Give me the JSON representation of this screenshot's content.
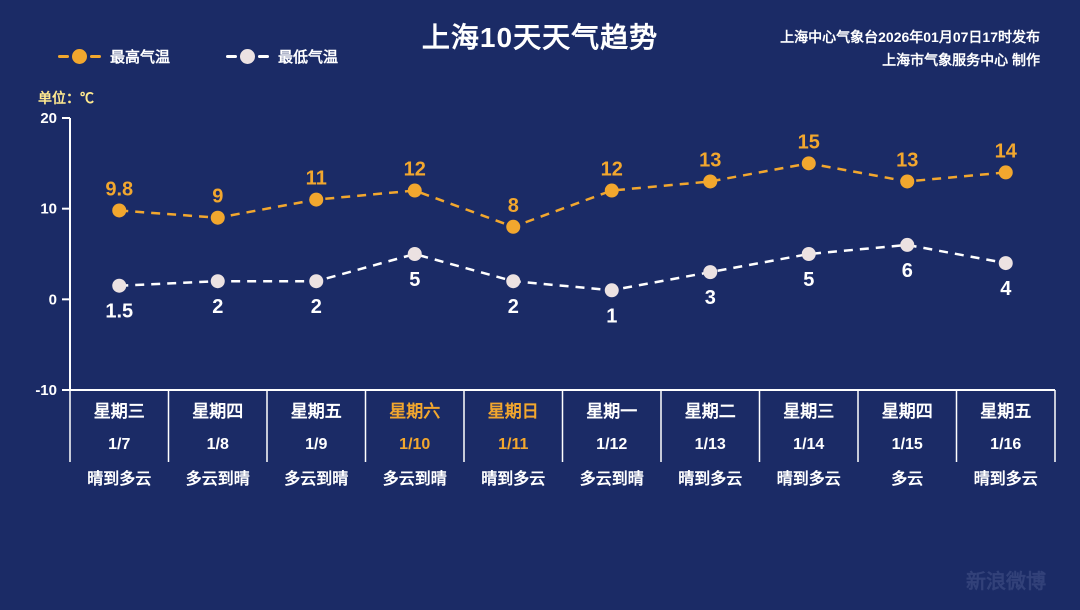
{
  "title": "上海10天天气趋势",
  "source": {
    "line1": "上海中心气象台2026年01月07日17时发布",
    "line2": "上海市气象服务中心  制作"
  },
  "unit_label": "单位：℃",
  "legend": {
    "high": "最高气温",
    "low": "最低气温"
  },
  "watermark": "新浪微博",
  "colors": {
    "background": "#1b2b66",
    "axis": "#ffffff",
    "text": "#ffffff",
    "weekend": "#f2a72e",
    "high": "#f2a72e",
    "low_line": "#ffffff",
    "low_marker": "#ece2e2",
    "unit": "#ffe98f"
  },
  "chart_data": {
    "type": "line",
    "title": "上海10天天气趋势",
    "unit": "℃",
    "ylim": [
      -10,
      20
    ],
    "yticks": [
      20,
      10,
      0,
      -10
    ],
    "grid": false,
    "legend_position": "top-left",
    "line_style": "dashed",
    "categories": [
      {
        "weekday": "星期三",
        "date": "1/7",
        "weather": "晴到多云",
        "weekend": false
      },
      {
        "weekday": "星期四",
        "date": "1/8",
        "weather": "多云到晴",
        "weekend": false
      },
      {
        "weekday": "星期五",
        "date": "1/9",
        "weather": "多云到晴",
        "weekend": false
      },
      {
        "weekday": "星期六",
        "date": "1/10",
        "weather": "多云到晴",
        "weekend": true
      },
      {
        "weekday": "星期日",
        "date": "1/11",
        "weather": "晴到多云",
        "weekend": true
      },
      {
        "weekday": "星期一",
        "date": "1/12",
        "weather": "多云到晴",
        "weekend": false
      },
      {
        "weekday": "星期二",
        "date": "1/13",
        "weather": "晴到多云",
        "weekend": false
      },
      {
        "weekday": "星期三",
        "date": "1/14",
        "weather": "晴到多云",
        "weekend": false
      },
      {
        "weekday": "星期四",
        "date": "1/15",
        "weather": "多云",
        "weekend": false
      },
      {
        "weekday": "星期五",
        "date": "1/16",
        "weather": "晴到多云",
        "weekend": false
      }
    ],
    "series": [
      {
        "name": "最高气温",
        "values": [
          9.8,
          9,
          11,
          12,
          8,
          12,
          13,
          15,
          13,
          14
        ],
        "color": "#f2a72e",
        "marker_color": "#f2a72e",
        "label_color": "#f2a72e",
        "label_position": "above"
      },
      {
        "name": "最低气温",
        "values": [
          1.5,
          2,
          2,
          5,
          2,
          1,
          3,
          5,
          6,
          4
        ],
        "color": "#ffffff",
        "marker_color": "#ece2e2",
        "label_color": "#ffffff",
        "label_position": "below"
      }
    ]
  }
}
